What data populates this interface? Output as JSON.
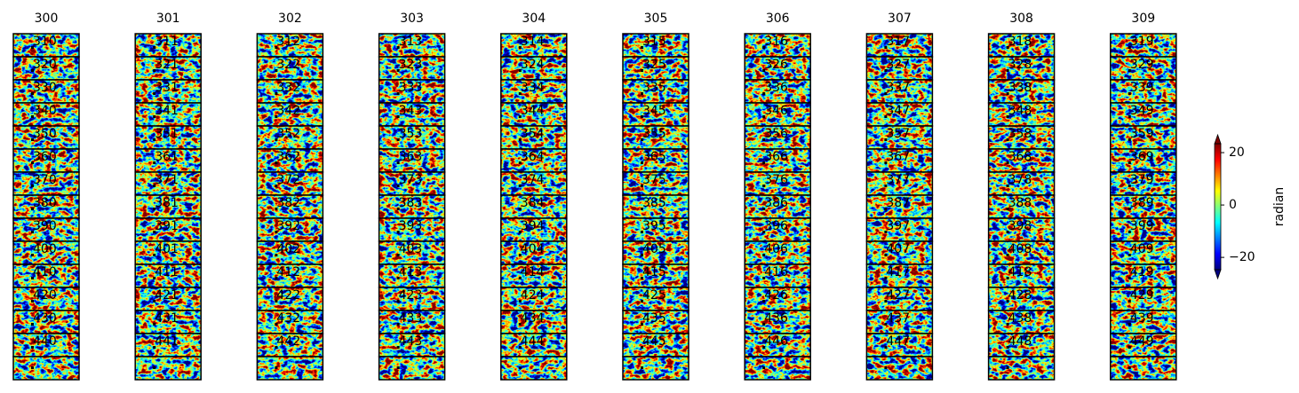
{
  "columns": [
    {
      "title": "300",
      "panels": [
        "310",
        "320",
        "330",
        "340",
        "350",
        "360",
        "370",
        "380",
        "390",
        "400",
        "410",
        "420",
        "430",
        "440",
        null
      ]
    },
    {
      "title": "301",
      "panels": [
        "311",
        "321",
        "331",
        "341",
        "351",
        "361",
        "371",
        "381",
        "391",
        "401",
        "411",
        "421",
        "431",
        "441",
        null
      ]
    },
    {
      "title": "302",
      "panels": [
        "312",
        "322",
        "332",
        "342",
        "352",
        "362",
        "372",
        "382",
        "392",
        "402",
        "412",
        "422",
        "432",
        "442",
        null
      ]
    },
    {
      "title": "303",
      "panels": [
        "313",
        "323",
        "333",
        "343",
        "353",
        "363",
        "373",
        "383",
        "393",
        "403",
        "413",
        "423",
        "433",
        "443",
        null
      ]
    },
    {
      "title": "304",
      "panels": [
        "314",
        "324",
        "334",
        "344",
        "354",
        "364",
        "374",
        "384",
        "394",
        "404",
        "414",
        "424",
        "434",
        "444",
        null
      ]
    },
    {
      "title": "305",
      "panels": [
        "315",
        "325",
        "335",
        "345",
        "355",
        "365",
        "375",
        "385",
        "395",
        "405",
        "415",
        "425",
        "435",
        "445",
        null
      ]
    },
    {
      "title": "306",
      "panels": [
        "316",
        "326",
        "336",
        "346",
        "356",
        "366",
        "376",
        "386",
        "396",
        "406",
        "416",
        "426",
        "436",
        "446",
        null
      ]
    },
    {
      "title": "307",
      "panels": [
        "317",
        "327",
        "337",
        "347",
        "357",
        "367",
        "377",
        "387",
        "397",
        "407",
        "417",
        "427",
        "437",
        "447",
        null
      ]
    },
    {
      "title": "308",
      "panels": [
        "318",
        "328",
        "338",
        "348",
        "358",
        "368",
        "378",
        "388",
        "398",
        "408",
        "418",
        "428",
        "438",
        "448",
        null
      ]
    },
    {
      "title": "309",
      "panels": [
        "319",
        "329",
        "339",
        "349",
        "359",
        "369",
        "379",
        "389",
        "399",
        "409",
        "419",
        "429",
        "439",
        "449",
        null
      ]
    }
  ],
  "colorbar": {
    "label": "radian",
    "colormap": "jet",
    "clim": [
      -24.7,
      23.4
    ],
    "ticks": [
      20,
      0,
      {
        "value": -20,
        "label": "−20"
      }
    ]
  }
}
